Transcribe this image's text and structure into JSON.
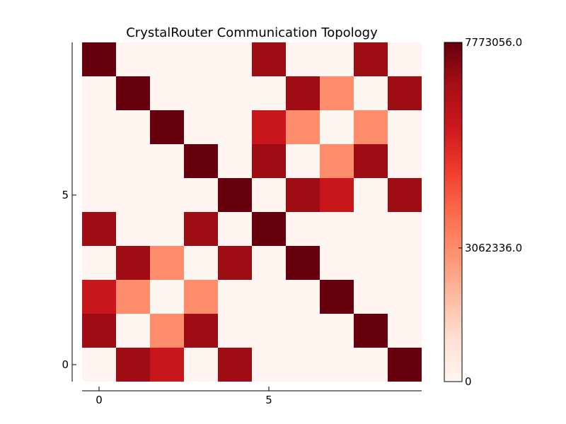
{
  "chart_data": {
    "type": "heatmap",
    "title": "CrystalRouter Communication Topology",
    "xlabel": "",
    "ylabel": "",
    "rows": 10,
    "cols": 10,
    "x_ticks": [
      0,
      5
    ],
    "y_ticks": [
      0,
      5
    ],
    "colorbar": {
      "colormap": "Reds",
      "min": 0,
      "max": 7773056.0,
      "tick_values": [
        0,
        3062336.0,
        7773056.0
      ],
      "tick_labels": [
        "0",
        "3062336.0",
        "7773056.0"
      ]
    },
    "matrix_row0_bottom": [
      [
        0,
        6900000,
        5900000,
        0,
        6900000,
        0,
        0,
        0,
        0,
        7773056
      ],
      [
        6900000,
        0,
        3062336,
        6900000,
        0,
        0,
        0,
        0,
        7773056,
        0
      ],
      [
        5900000,
        3062336,
        0,
        3062336,
        0,
        0,
        0,
        7773056,
        0,
        0
      ],
      [
        0,
        6900000,
        3062336,
        0,
        6900000,
        0,
        7773056,
        0,
        0,
        0
      ],
      [
        6900000,
        0,
        0,
        6900000,
        0,
        7773056,
        0,
        0,
        0,
        0
      ],
      [
        0,
        0,
        0,
        0,
        7773056,
        0,
        6900000,
        5900000,
        0,
        6900000
      ],
      [
        0,
        0,
        0,
        7773056,
        0,
        6900000,
        0,
        3062336,
        6900000,
        0
      ],
      [
        0,
        0,
        7773056,
        0,
        0,
        5900000,
        3062336,
        0,
        3062336,
        0
      ],
      [
        0,
        7773056,
        0,
        0,
        0,
        0,
        6900000,
        3062336,
        0,
        6900000
      ],
      [
        7773056,
        0,
        0,
        0,
        0,
        6900000,
        0,
        0,
        6900000,
        0
      ]
    ]
  }
}
